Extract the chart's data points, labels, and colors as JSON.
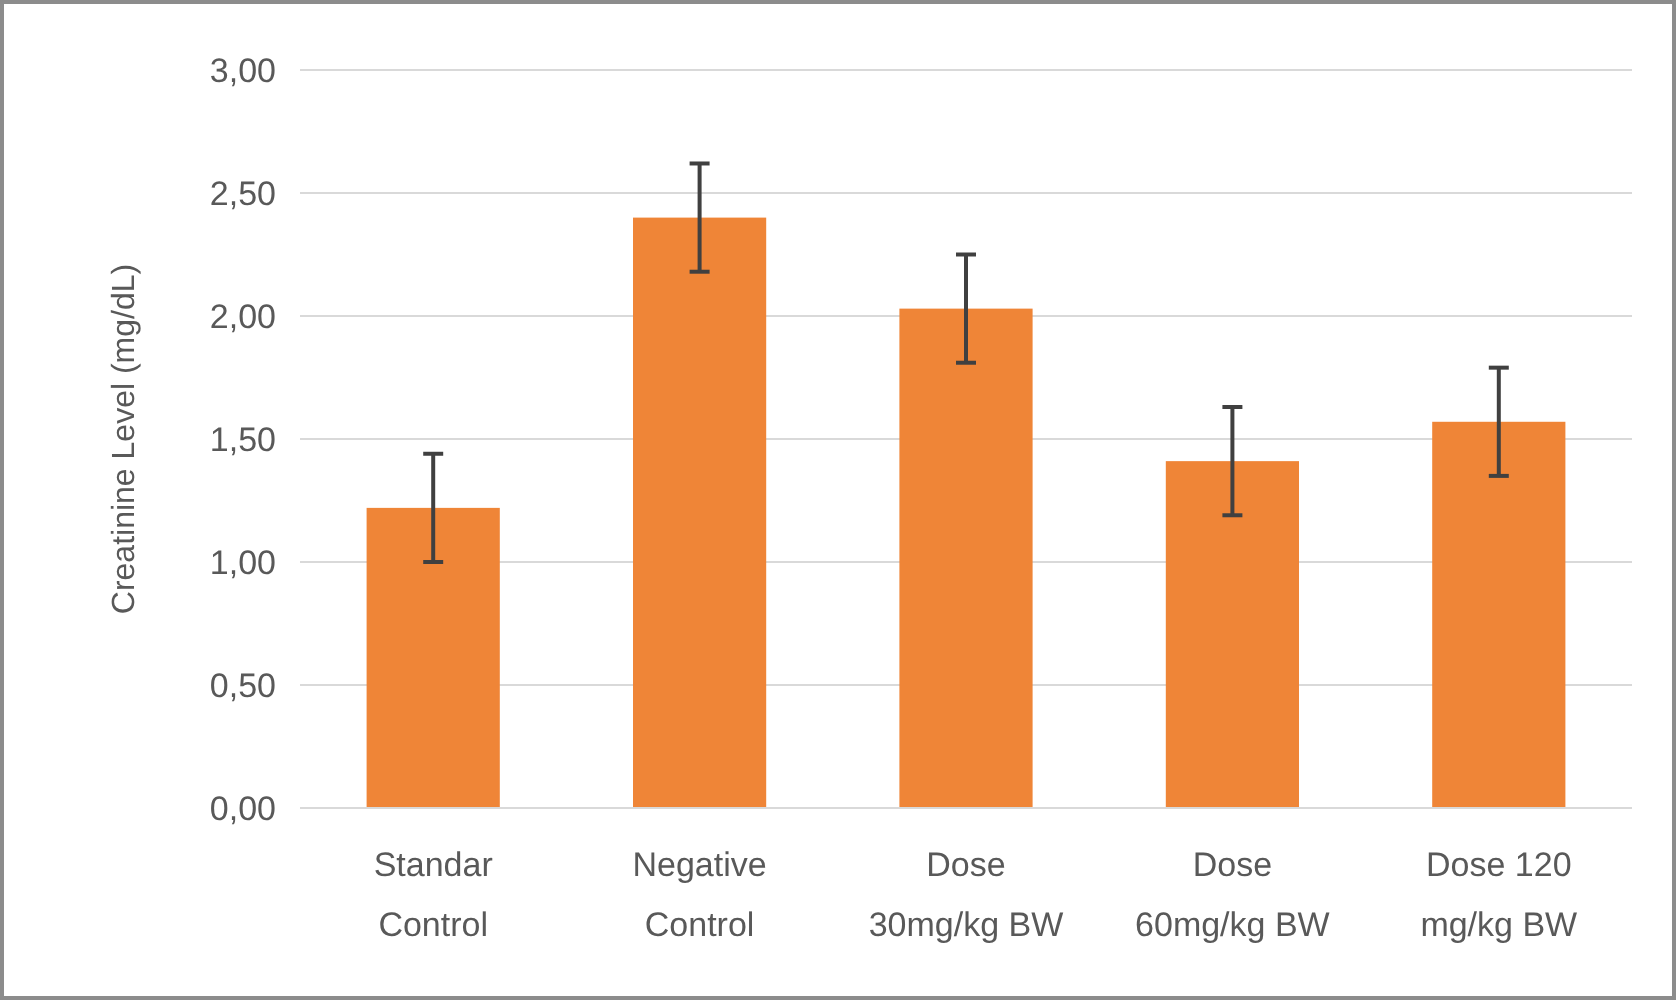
{
  "chart_data": {
    "type": "bar",
    "ylabel": "Creatinine Level (mg/dL)",
    "categories": [
      "Standar\nControl",
      "Negative\nControl",
      "Dose\n30mg/kg BW",
      "Dose\n60mg/kg BW",
      "Dose 120\nmg/kg BW"
    ],
    "values": [
      1.22,
      2.4,
      2.03,
      1.41,
      1.57
    ],
    "errors": [
      0.22,
      0.22,
      0.22,
      0.22,
      0.22
    ],
    "color": "#ef8537",
    "ylim": [
      0,
      3
    ],
    "yticks": [
      {
        "value": 0,
        "label": "0,00"
      },
      {
        "value": 0.5,
        "label": "0,50"
      },
      {
        "value": 1,
        "label": "1,00"
      },
      {
        "value": 1.5,
        "label": "1,50"
      },
      {
        "value": 2,
        "label": "2,00"
      },
      {
        "value": 2.5,
        "label": "2,50"
      },
      {
        "value": 3,
        "label": "3,00"
      }
    ],
    "grid": "y"
  }
}
